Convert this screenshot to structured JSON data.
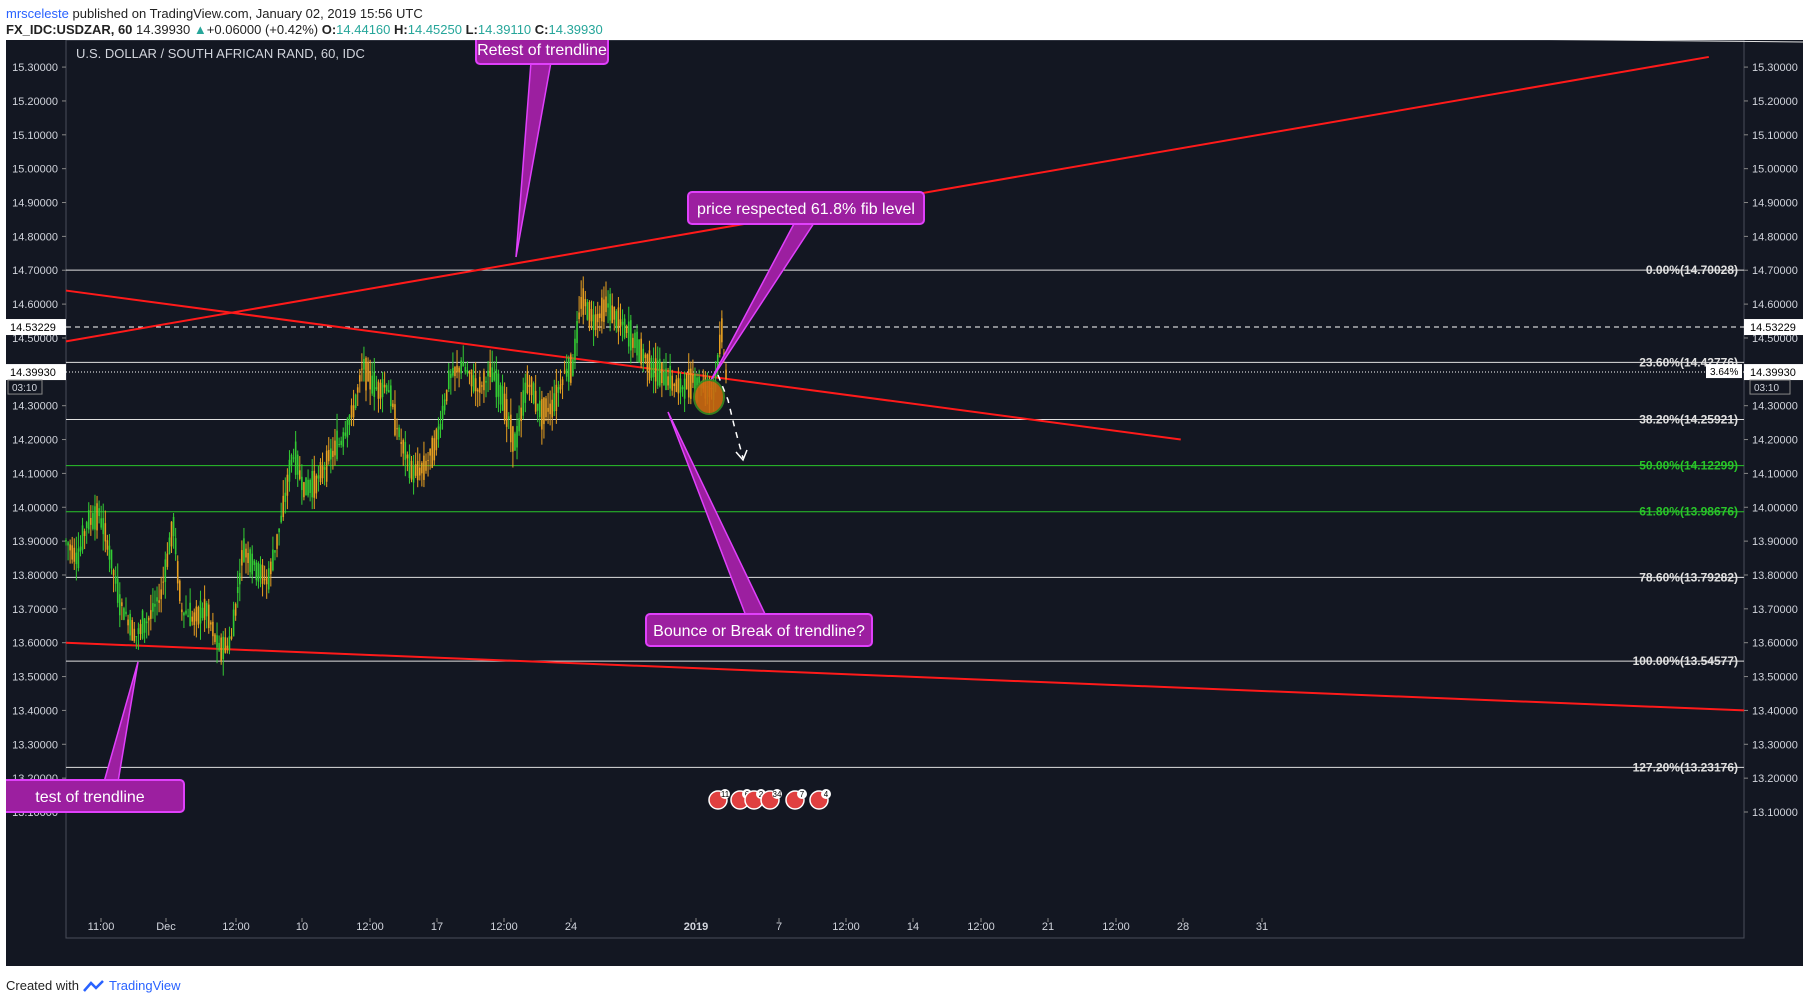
{
  "header": {
    "username": "mrsceleste",
    "published_text": "published on TradingView.com, January 02, 2019 15:56 UTC",
    "symbol_line": "FX_IDC:USDZAR, 60",
    "last": "14.39930",
    "change_arrow": "▲",
    "change": "+0.06000 (+0.42%)",
    "o_label": "O:",
    "o_val": "14.44160",
    "h_label": "H:",
    "h_val": "14.45250",
    "l_label": "L:",
    "l_val": "14.39110",
    "c_label": "C:",
    "c_val": "14.39930"
  },
  "footer": {
    "created_with": "Created with",
    "brand": "TradingView"
  },
  "colors": {
    "background": "#131722",
    "trendline": "#ff1a1a",
    "fib_white": "#e0e0e0",
    "fib_green": "#29c529",
    "callout": "#9c1fa0",
    "callout_border": "#e040fb",
    "candle_up": "#33cc33",
    "candle_down": "#e8a020"
  },
  "chart_data": {
    "type": "candlestick",
    "title": "U.S. DOLLAR / SOUTH AFRICAN RAND, 60, IDC",
    "ylim": [
      13.1,
      15.38
    ],
    "y_ticks": [
      "15.30000",
      "15.20000",
      "15.10000",
      "15.00000",
      "14.90000",
      "14.80000",
      "14.70000",
      "14.60000",
      "14.50000",
      "14.40000",
      "14.30000",
      "14.20000",
      "14.10000",
      "14.00000",
      "13.90000",
      "13.80000",
      "13.70000",
      "13.60000",
      "13.50000",
      "13.40000",
      "13.30000",
      "13.20000",
      "13.10000"
    ],
    "x_ticks": [
      "11:00",
      "Dec",
      "12:00",
      "10",
      "12:00",
      "17",
      "12:00",
      "24",
      "2019",
      "7",
      "12:00",
      "14",
      "12:00",
      "21",
      "12:00",
      "28",
      "31"
    ],
    "price_labels": {
      "last": "14.39930",
      "last_pct": "3.64%",
      "countdown": "03:10",
      "dashed_level": "14.53229"
    },
    "price_path": [
      [
        0,
        13.9
      ],
      [
        0.015,
        13.85
      ],
      [
        0.025,
        13.95
      ],
      [
        0.04,
        13.98
      ],
      [
        0.05,
        13.9
      ],
      [
        0.065,
        13.72
      ],
      [
        0.085,
        13.62
      ],
      [
        0.1,
        13.67
      ],
      [
        0.115,
        13.74
      ],
      [
        0.13,
        13.95
      ],
      [
        0.14,
        13.7
      ],
      [
        0.155,
        13.67
      ],
      [
        0.17,
        13.7
      ],
      [
        0.185,
        13.58
      ],
      [
        0.2,
        13.6
      ],
      [
        0.215,
        13.88
      ],
      [
        0.23,
        13.82
      ],
      [
        0.245,
        13.78
      ],
      [
        0.26,
        13.95
      ],
      [
        0.275,
        14.16
      ],
      [
        0.29,
        14.05
      ],
      [
        0.305,
        14.08
      ],
      [
        0.32,
        14.15
      ],
      [
        0.335,
        14.2
      ],
      [
        0.35,
        14.3
      ],
      [
        0.36,
        14.42
      ],
      [
        0.375,
        14.35
      ],
      [
        0.39,
        14.36
      ],
      [
        0.405,
        14.2
      ],
      [
        0.42,
        14.1
      ],
      [
        0.435,
        14.12
      ],
      [
        0.45,
        14.2
      ],
      [
        0.465,
        14.38
      ],
      [
        0.48,
        14.42
      ],
      [
        0.5,
        14.35
      ],
      [
        0.515,
        14.4
      ],
      [
        0.53,
        14.32
      ],
      [
        0.545,
        14.18
      ],
      [
        0.56,
        14.38
      ],
      [
        0.575,
        14.28
      ],
      [
        0.59,
        14.3
      ],
      [
        0.605,
        14.4
      ],
      [
        0.615,
        14.42
      ],
      [
        0.625,
        14.62
      ],
      [
        0.64,
        14.55
      ],
      [
        0.655,
        14.6
      ],
      [
        0.67,
        14.55
      ],
      [
        0.685,
        14.5
      ],
      [
        0.7,
        14.45
      ],
      [
        0.715,
        14.4
      ],
      [
        0.73,
        14.38
      ],
      [
        0.745,
        14.35
      ],
      [
        0.76,
        14.38
      ],
      [
        0.775,
        14.36
      ],
      [
        0.785,
        14.35
      ],
      [
        0.795,
        14.52
      ],
      [
        0.8,
        14.4
      ]
    ],
    "resistance_line": {
      "from": [
        13.95,
        14.49
      ],
      "to": [
        15.35,
        15.33
      ]
    },
    "mid_trendline": {
      "p1": [
        13.95,
        14.64
      ],
      "p2": [
        14.9,
        14.2
      ]
    },
    "support_line": {
      "p1": [
        13.95,
        13.6
      ],
      "p2": [
        15.38,
        13.4
      ]
    },
    "fib_levels": [
      {
        "label": "0.00%(14.70028)",
        "value": 14.70028,
        "color": "white"
      },
      {
        "label": "23.60%(14.42776)",
        "value": 14.42776,
        "color": "white"
      },
      {
        "label": "38.20%(14.25921)",
        "value": 14.25921,
        "color": "white"
      },
      {
        "label": "50.00%(14.12299)",
        "value": 14.12299,
        "color": "green"
      },
      {
        "label": "61.80%(13.98676)",
        "value": 13.98676,
        "color": "green"
      },
      {
        "label": "78.60%(13.79282)",
        "value": 13.79282,
        "color": "white"
      },
      {
        "label": "100.00%(13.54577)",
        "value": 13.54577,
        "color": "white"
      },
      {
        "label": "127.20%(13.23176)",
        "value": 13.23176,
        "color": "white"
      }
    ],
    "annotations": [
      "Retest of trendline",
      "price respected 61.8% fib level",
      "Bounce or Break of trendline?",
      "test of trendline"
    ],
    "event_badges": [
      "11",
      "6",
      "2",
      "34",
      "7",
      "4"
    ]
  }
}
